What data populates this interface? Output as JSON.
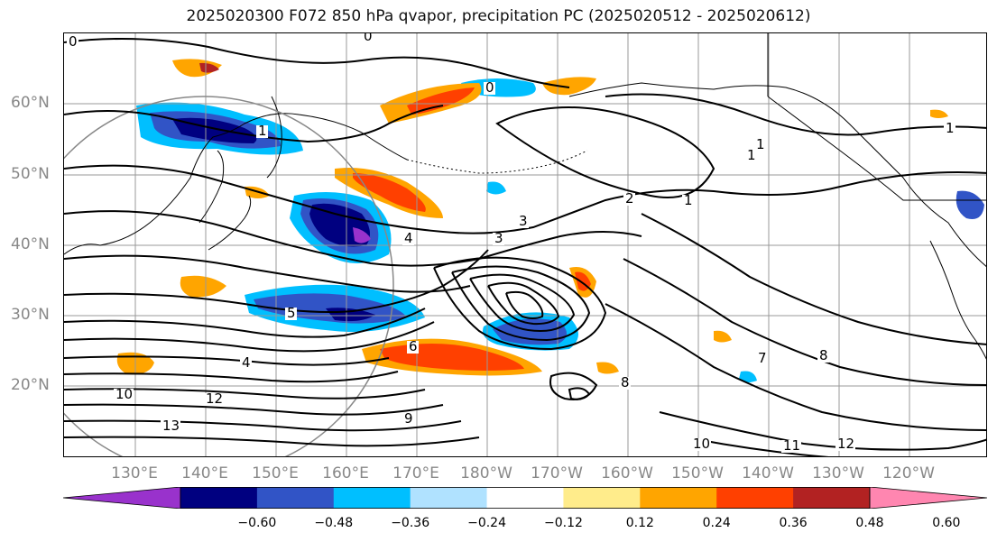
{
  "title": "2025020300 F072 850 hPa qvapor, precipitation PC (2025020512 - 2025020612)",
  "lat_labels": [
    "60°N",
    "50°N",
    "40°N",
    "30°N",
    "20°N"
  ],
  "lon_labels": [
    "130°E",
    "140°E",
    "150°E",
    "160°E",
    "170°E",
    "180°W",
    "170°W",
    "160°W",
    "150°W",
    "140°W",
    "130°W",
    "120°W"
  ],
  "colorbar": {
    "ticks": [
      "−0.60",
      "−0.48",
      "−0.36",
      "−0.24",
      "−0.12",
      "0.12",
      "0.24",
      "0.36",
      "0.48",
      "0.60"
    ],
    "colors": [
      "#9932cc",
      "#000080",
      "#3154c6",
      "#00bfff",
      "#b0e2ff",
      "#ffffff",
      "#ffec8b",
      "#ffa500",
      "#ff4000",
      "#b22222",
      "#ff86b0"
    ]
  },
  "contour_labels": [
    "0",
    "0",
    "0",
    "1",
    "1",
    "1",
    "1",
    "1",
    "2",
    "3",
    "3",
    "4",
    "5",
    "6",
    "7",
    "8",
    "8",
    "9",
    "10",
    "10",
    "11",
    "12",
    "12",
    "13",
    "4"
  ],
  "colors": {
    "contour": "#000000",
    "grid": "#999999",
    "coast": "#000000"
  }
}
